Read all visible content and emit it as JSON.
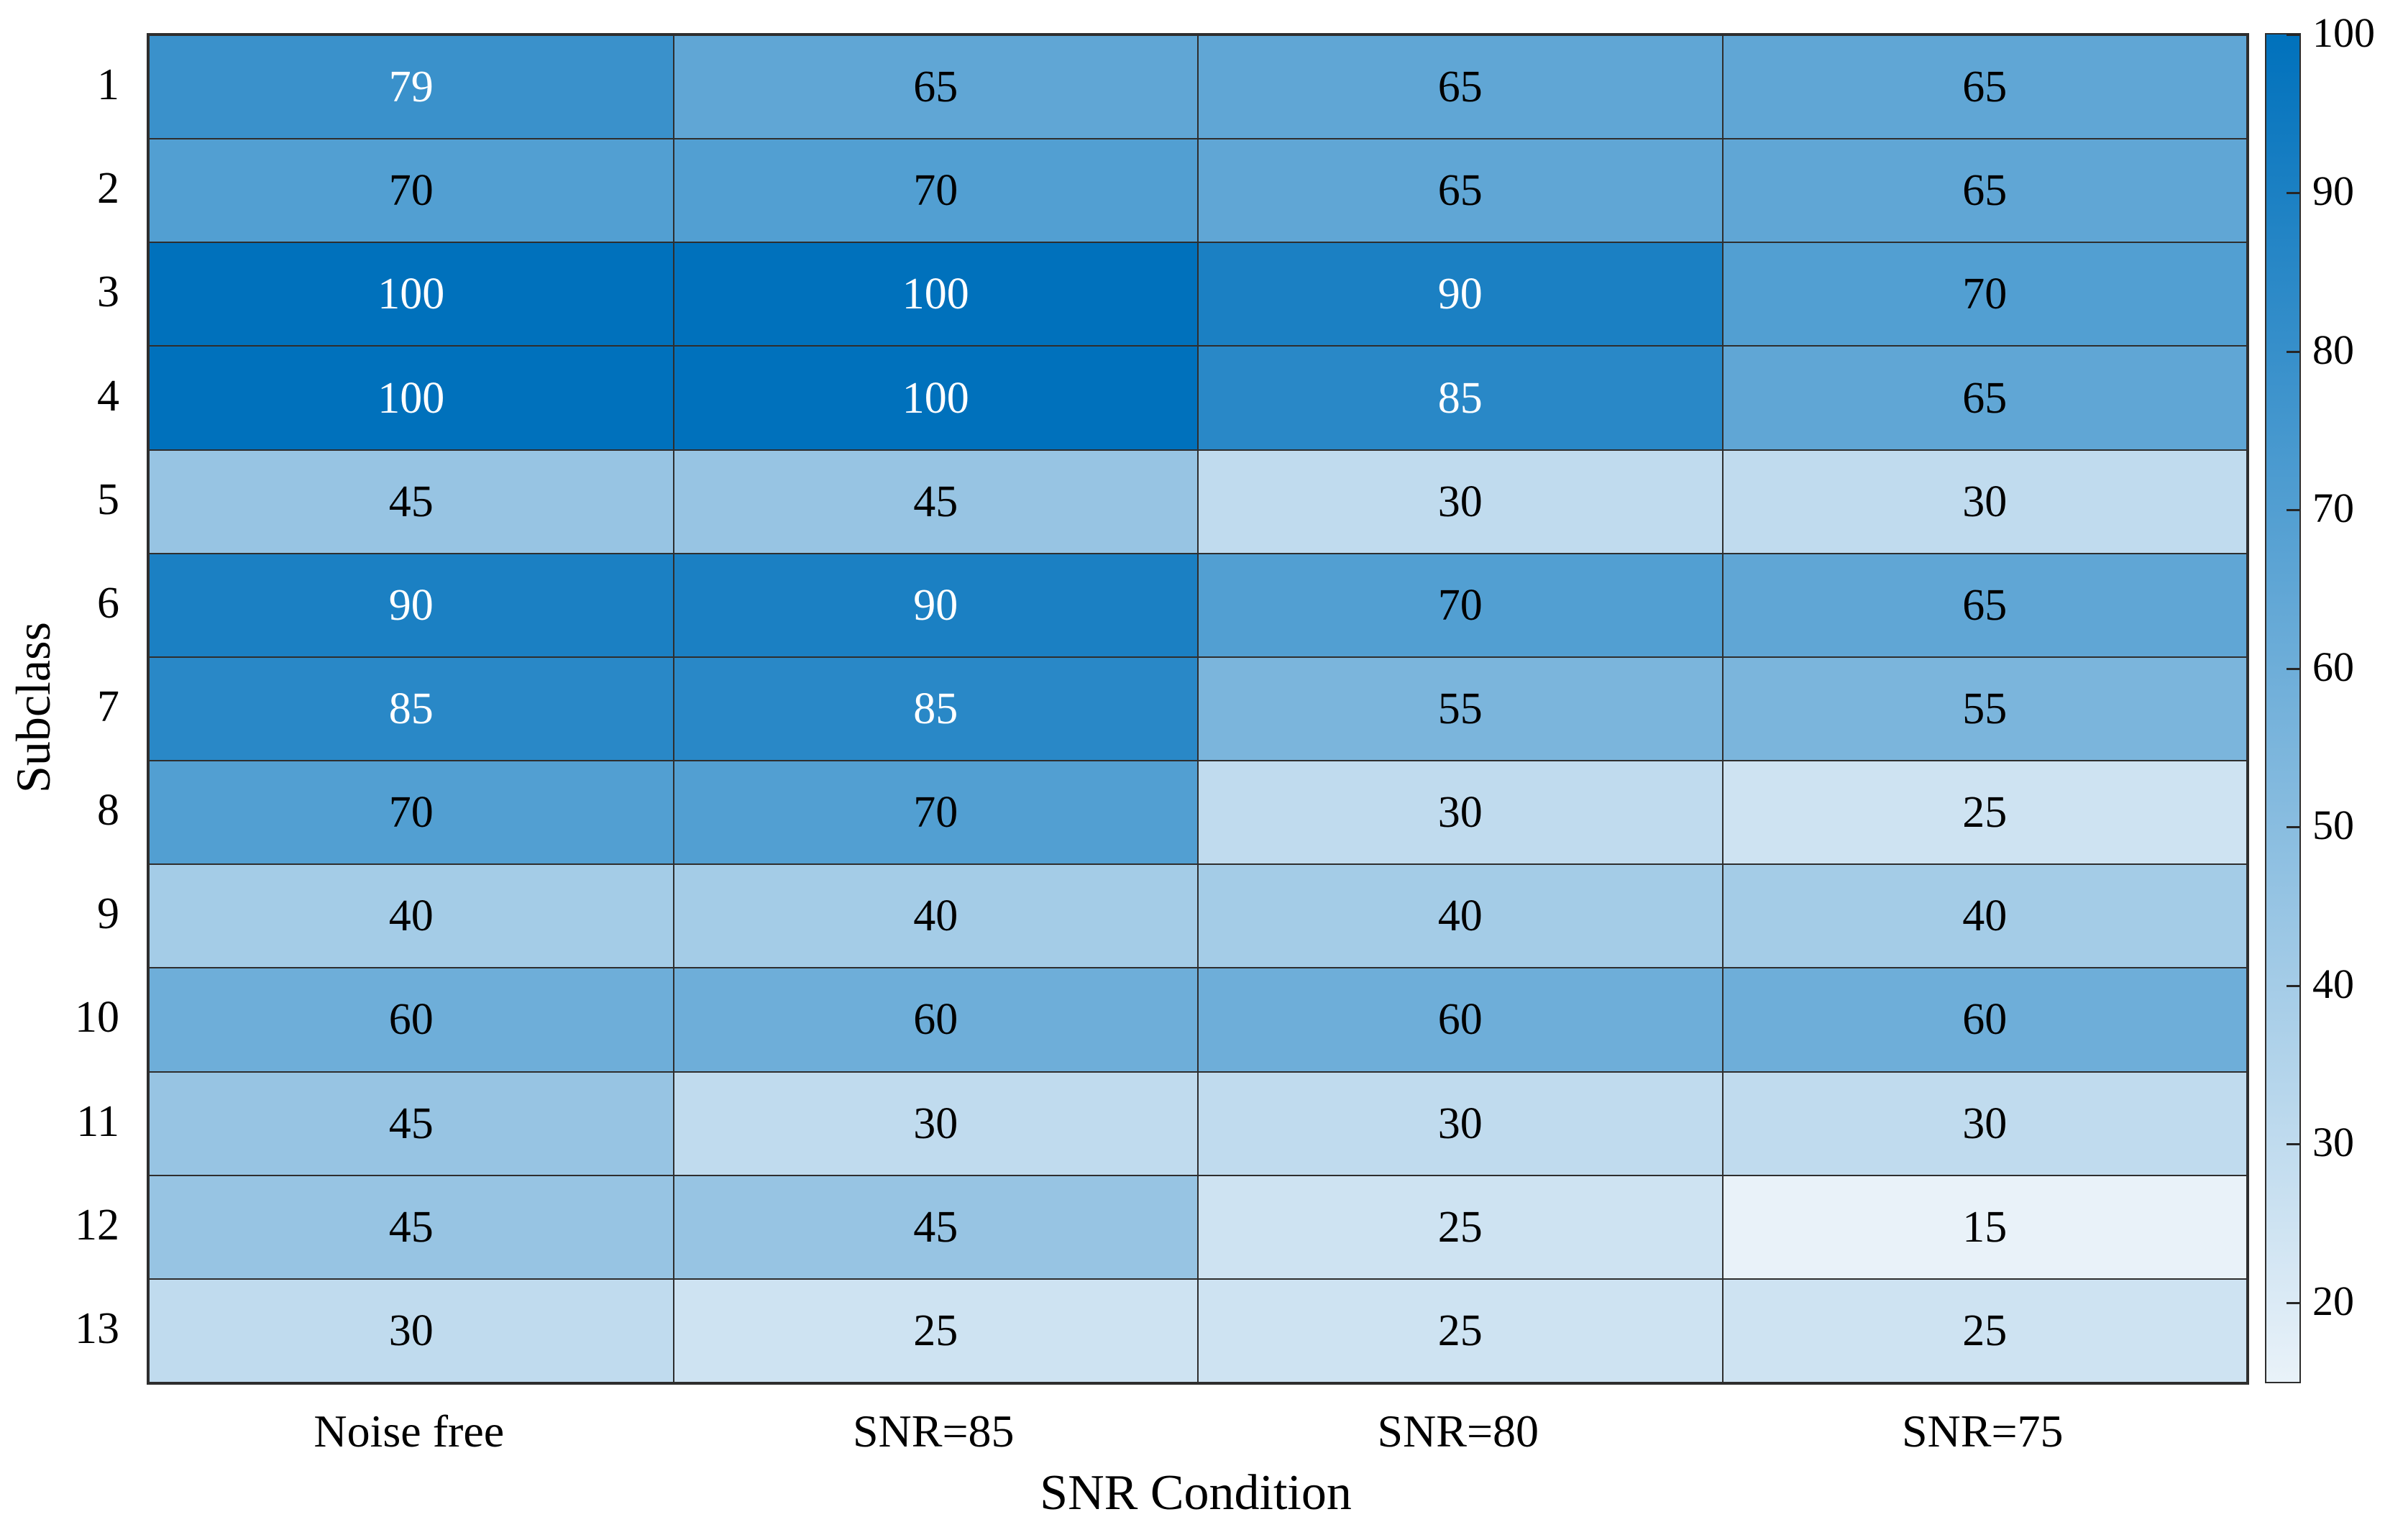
{
  "chart_data": {
    "type": "heatmap",
    "xlabel": "SNR Condition",
    "ylabel": "Subclass",
    "x_categories": [
      "Noise free",
      "SNR=85",
      "SNR=80",
      "SNR=75"
    ],
    "y_categories": [
      "1",
      "2",
      "3",
      "4",
      "5",
      "6",
      "7",
      "8",
      "9",
      "10",
      "11",
      "12",
      "13"
    ],
    "values": [
      [
        79,
        65,
        65,
        65
      ],
      [
        70,
        70,
        65,
        65
      ],
      [
        100,
        100,
        90,
        70
      ],
      [
        100,
        100,
        85,
        65
      ],
      [
        45,
        45,
        30,
        30
      ],
      [
        90,
        90,
        70,
        65
      ],
      [
        85,
        85,
        55,
        55
      ],
      [
        70,
        70,
        30,
        25
      ],
      [
        40,
        40,
        40,
        40
      ],
      [
        60,
        60,
        60,
        60
      ],
      [
        45,
        30,
        30,
        30
      ],
      [
        45,
        45,
        25,
        15
      ],
      [
        30,
        25,
        25,
        25
      ]
    ],
    "colorbar": {
      "ticks": [
        100,
        90,
        80,
        70,
        60,
        50,
        40,
        30,
        20
      ],
      "vmin": 15,
      "vmax": 100,
      "color_low": "#E9F2F9",
      "color_high": "#0071BC"
    },
    "grid_on": true,
    "grid_color": "#2e2e2e",
    "cell_text_white_threshold": 75,
    "legend_position": "right-colorbar"
  }
}
